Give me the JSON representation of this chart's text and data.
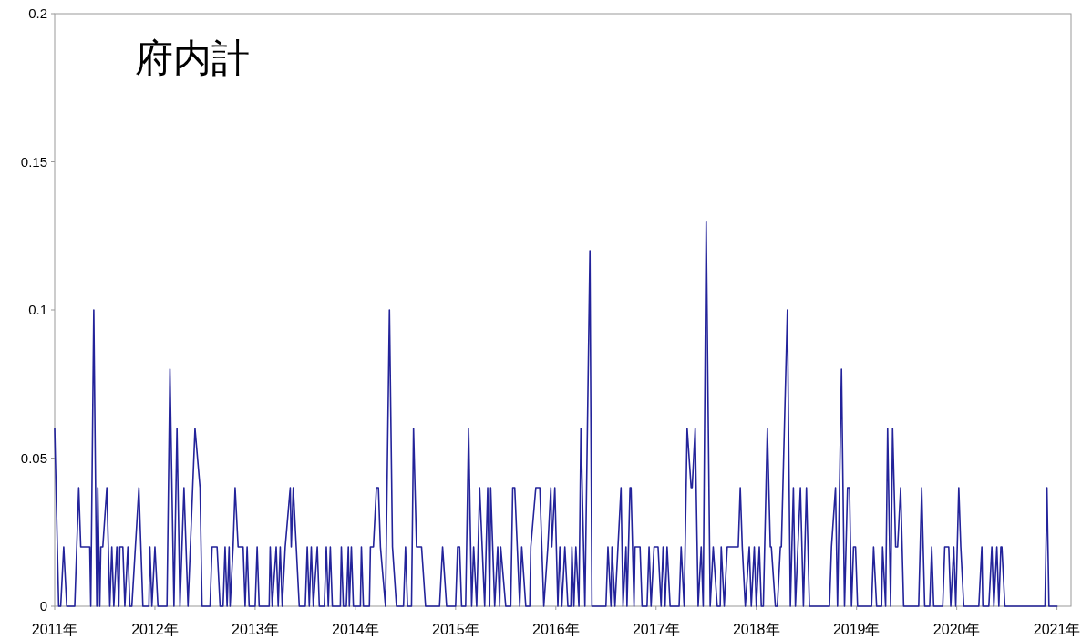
{
  "chart_data": {
    "type": "line",
    "title": "府内計",
    "xlim": [
      2011,
      2021.14
    ],
    "ylim": [
      0,
      0.2
    ],
    "xticks": [
      {
        "value": 2011,
        "label": "2011年"
      },
      {
        "value": 2012,
        "label": "2012年"
      },
      {
        "value": 2013,
        "label": "2013年"
      },
      {
        "value": 2014,
        "label": "2014年"
      },
      {
        "value": 2015,
        "label": "2015年"
      },
      {
        "value": 2016,
        "label": "2016年"
      },
      {
        "value": 2017,
        "label": "2017年"
      },
      {
        "value": 2018,
        "label": "2018年"
      },
      {
        "value": 2019,
        "label": "2019年"
      },
      {
        "value": 2020,
        "label": "2020年"
      },
      {
        "value": 2021,
        "label": "2021年"
      }
    ],
    "yticks": [
      0,
      0.05,
      0.1,
      0.15,
      0.2
    ],
    "series": [
      {
        "color": "#23239a",
        "x": [
          2011.0,
          2011.04,
          2011.06,
          2011.09,
          2011.12,
          2011.2,
          2011.24,
          2011.26,
          2011.35,
          2011.36,
          2011.39,
          2011.42,
          2011.43,
          2011.45,
          2011.46,
          2011.48,
          2011.52,
          2011.55,
          2011.57,
          2011.59,
          2011.62,
          2011.64,
          2011.65,
          2011.68,
          2011.7,
          2011.73,
          2011.75,
          2011.77,
          2011.84,
          2011.88,
          2011.94,
          2011.95,
          2011.97,
          2012.0,
          2012.03,
          2012.12,
          2012.15,
          2012.19,
          2012.22,
          2012.25,
          2012.29,
          2012.33,
          2012.4,
          2012.45,
          2012.47,
          2012.55,
          2012.57,
          2012.62,
          2012.65,
          2012.68,
          2012.7,
          2012.72,
          2012.74,
          2012.75,
          2012.78,
          2012.8,
          2012.83,
          2012.88,
          2012.9,
          2012.92,
          2012.94,
          2013.0,
          2013.02,
          2013.04,
          2013.14,
          2013.15,
          2013.17,
          2013.21,
          2013.23,
          2013.25,
          2013.27,
          2013.3,
          2013.35,
          2013.36,
          2013.38,
          2013.41,
          2013.44,
          2013.5,
          2013.52,
          2013.54,
          2013.56,
          2013.58,
          2013.62,
          2013.64,
          2013.69,
          2013.71,
          2013.73,
          2013.75,
          2013.77,
          2013.85,
          2013.86,
          2013.88,
          2013.91,
          2013.93,
          2013.94,
          2013.96,
          2013.98,
          2014.05,
          2014.06,
          2014.08,
          2014.14,
          2014.15,
          2014.18,
          2014.21,
          2014.23,
          2014.25,
          2014.3,
          2014.34,
          2014.37,
          2014.41,
          2014.48,
          2014.5,
          2014.52,
          2014.56,
          2014.58,
          2014.61,
          2014.66,
          2014.7,
          2014.84,
          2014.87,
          2014.91,
          2015.0,
          2015.02,
          2015.04,
          2015.06,
          2015.1,
          2015.13,
          2015.16,
          2015.18,
          2015.21,
          2015.24,
          2015.29,
          2015.32,
          2015.34,
          2015.35,
          2015.39,
          2015.42,
          2015.44,
          2015.45,
          2015.5,
          2015.55,
          2015.57,
          2015.59,
          2015.64,
          2015.66,
          2015.7,
          2015.74,
          2015.75,
          2015.8,
          2015.84,
          2015.88,
          2015.92,
          2015.95,
          2015.96,
          2015.99,
          2016.02,
          2016.04,
          2016.06,
          2016.09,
          2016.12,
          2016.15,
          2016.16,
          2016.18,
          2016.2,
          2016.23,
          2016.25,
          2016.29,
          2016.34,
          2016.36,
          2016.5,
          2016.52,
          2016.55,
          2016.56,
          2016.59,
          2016.65,
          2016.67,
          2016.7,
          2016.71,
          2016.74,
          2016.75,
          2016.78,
          2016.79,
          2016.84,
          2016.86,
          2016.91,
          2016.93,
          2016.95,
          2016.98,
          2017.02,
          2017.05,
          2017.07,
          2017.09,
          2017.11,
          2017.14,
          2017.23,
          2017.25,
          2017.28,
          2017.31,
          2017.35,
          2017.36,
          2017.39,
          2017.42,
          2017.45,
          2017.47,
          2017.5,
          2017.54,
          2017.57,
          2017.61,
          2017.64,
          2017.65,
          2017.68,
          2017.71,
          2017.82,
          2017.84,
          2017.86,
          2017.89,
          2017.93,
          2017.95,
          2017.98,
          2018.0,
          2018.03,
          2018.05,
          2018.07,
          2018.11,
          2018.14,
          2018.15,
          2018.19,
          2018.21,
          2018.24,
          2018.25,
          2018.31,
          2018.34,
          2018.37,
          2018.39,
          2018.44,
          2018.47,
          2018.5,
          2018.53,
          2018.73,
          2018.75,
          2018.79,
          2018.81,
          2018.85,
          2018.88,
          2018.91,
          2018.93,
          2018.95,
          2018.97,
          2018.99,
          2019.01,
          2019.15,
          2019.17,
          2019.2,
          2019.25,
          2019.26,
          2019.29,
          2019.31,
          2019.34,
          2019.36,
          2019.39,
          2019.41,
          2019.44,
          2019.47,
          2019.62,
          2019.65,
          2019.68,
          2019.73,
          2019.75,
          2019.77,
          2019.86,
          2019.88,
          2019.92,
          2019.94,
          2019.97,
          2019.99,
          2020.02,
          2020.04,
          2020.07,
          2020.22,
          2020.25,
          2020.26,
          2020.32,
          2020.35,
          2020.37,
          2020.4,
          2020.42,
          2020.44,
          2020.45,
          2020.48,
          2020.88,
          2020.9,
          2020.92,
          2021.0
        ],
        "values": [
          0.06,
          0,
          0,
          0.02,
          0,
          0,
          0.04,
          0.02,
          0.02,
          0,
          0.1,
          0,
          0.04,
          0,
          0.02,
          0.02,
          0.04,
          0,
          0.02,
          0,
          0.02,
          0,
          0.02,
          0.02,
          0,
          0.02,
          0,
          0,
          0.04,
          0,
          0,
          0.02,
          0,
          0.02,
          0,
          0,
          0.08,
          0,
          0.06,
          0,
          0.04,
          0,
          0.06,
          0.04,
          0,
          0,
          0.02,
          0.02,
          0,
          0,
          0.02,
          0,
          0.02,
          0,
          0.02,
          0.04,
          0.02,
          0.02,
          0,
          0.02,
          0,
          0,
          0.02,
          0,
          0,
          0.02,
          0,
          0.02,
          0,
          0.02,
          0,
          0.02,
          0.04,
          0.02,
          0.04,
          0.02,
          0,
          0,
          0.02,
          0,
          0.02,
          0,
          0.02,
          0,
          0,
          0.02,
          0,
          0.02,
          0,
          0,
          0.02,
          0,
          0,
          0.02,
          0,
          0.02,
          0,
          0,
          0.02,
          0,
          0,
          0.02,
          0.02,
          0.04,
          0.04,
          0.02,
          0,
          0.1,
          0.02,
          0,
          0,
          0.02,
          0,
          0,
          0.06,
          0.02,
          0.02,
          0,
          0,
          0.02,
          0,
          0,
          0.02,
          0.02,
          0,
          0,
          0.06,
          0,
          0.02,
          0,
          0.04,
          0,
          0.04,
          0,
          0.04,
          0,
          0.02,
          0,
          0.02,
          0,
          0,
          0.04,
          0.04,
          0,
          0.02,
          0,
          0,
          0.02,
          0.04,
          0.04,
          0,
          0.02,
          0.04,
          0.02,
          0.04,
          0,
          0.02,
          0,
          0.02,
          0,
          0,
          0.02,
          0,
          0.02,
          0,
          0.06,
          0,
          0.12,
          0,
          0,
          0.02,
          0,
          0.02,
          0,
          0.04,
          0,
          0.02,
          0,
          0.04,
          0.04,
          0,
          0.02,
          0.02,
          0,
          0,
          0.02,
          0,
          0.02,
          0.02,
          0,
          0.02,
          0,
          0.02,
          0,
          0,
          0.02,
          0,
          0.06,
          0.04,
          0.04,
          0.06,
          0,
          0.02,
          0,
          0.13,
          0,
          0.02,
          0,
          0,
          0.02,
          0,
          0.02,
          0.02,
          0.04,
          0.02,
          0,
          0.02,
          0,
          0.02,
          0,
          0.02,
          0,
          0,
          0.06,
          0.02,
          0.02,
          0,
          0,
          0.02,
          0.02,
          0.1,
          0,
          0.04,
          0,
          0.04,
          0,
          0.04,
          0,
          0,
          0.02,
          0.04,
          0,
          0.08,
          0,
          0.04,
          0.04,
          0,
          0.02,
          0.02,
          0,
          0,
          0.02,
          0,
          0,
          0.02,
          0,
          0.06,
          0,
          0.06,
          0.02,
          0.02,
          0.04,
          0,
          0,
          0.04,
          0,
          0,
          0.02,
          0,
          0,
          0.02,
          0.02,
          0,
          0.02,
          0,
          0.04,
          0.02,
          0,
          0,
          0.02,
          0,
          0,
          0.02,
          0,
          0.02,
          0,
          0.02,
          0.02,
          0,
          0,
          0.04,
          0,
          0
        ]
      }
    ]
  }
}
